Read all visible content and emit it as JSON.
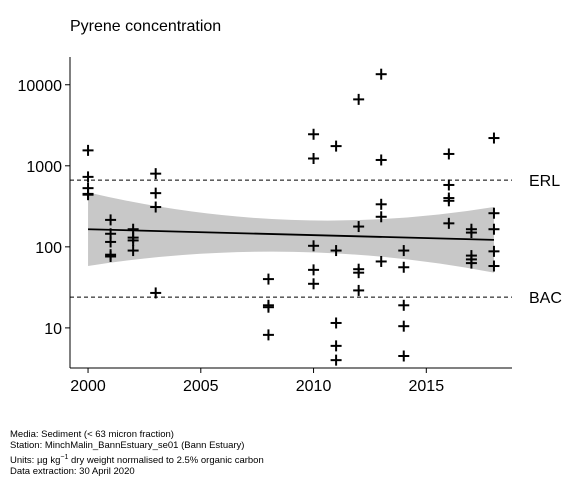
{
  "chart_data": {
    "type": "scatter",
    "title": "Pyrene concentration",
    "xlabel": "",
    "ylabel": "",
    "yscale": "log",
    "xlim": [
      1999.2,
      2018.8
    ],
    "ylim": [
      3.2,
      22000
    ],
    "x_ticks": [
      2000,
      2005,
      2010,
      2015
    ],
    "x_tick_labels": [
      "2000",
      "2005",
      "2010",
      "2015"
    ],
    "y_ticks": [
      10,
      100,
      1000,
      10000
    ],
    "y_tick_labels": [
      "10",
      "100",
      "1000",
      "10000"
    ],
    "grid": false,
    "reference_lines": [
      {
        "label": "ERL",
        "value": 665
      },
      {
        "label": "BAC",
        "value": 24
      }
    ],
    "trend": {
      "x": [
        2000,
        2018
      ],
      "y": [
        165,
        122
      ],
      "band_lower": [
        58,
        48
      ],
      "band_mid": [
        150,
        100
      ],
      "band_upper": [
        470,
        310
      ],
      "band_color": "#c8c8c8"
    },
    "points": [
      {
        "x": 2000,
        "y": 1550
      },
      {
        "x": 2000,
        "y": 730
      },
      {
        "x": 2000,
        "y": 530
      },
      {
        "x": 2000,
        "y": 450
      },
      {
        "x": 2000,
        "y": 440
      },
      {
        "x": 2001,
        "y": 215
      },
      {
        "x": 2001,
        "y": 145
      },
      {
        "x": 2001,
        "y": 115
      },
      {
        "x": 2001,
        "y": 80
      },
      {
        "x": 2001,
        "y": 76
      },
      {
        "x": 2002,
        "y": 165
      },
      {
        "x": 2002,
        "y": 130
      },
      {
        "x": 2002,
        "y": 120
      },
      {
        "x": 2002,
        "y": 90
      },
      {
        "x": 2003,
        "y": 800
      },
      {
        "x": 2003,
        "y": 460
      },
      {
        "x": 2003,
        "y": 310
      },
      {
        "x": 2003,
        "y": 27
      },
      {
        "x": 2008,
        "y": 40
      },
      {
        "x": 2008,
        "y": 19
      },
      {
        "x": 2008,
        "y": 18
      },
      {
        "x": 2008,
        "y": 8.2
      },
      {
        "x": 2010,
        "y": 2450
      },
      {
        "x": 2010,
        "y": 1230
      },
      {
        "x": 2010,
        "y": 103
      },
      {
        "x": 2010,
        "y": 52
      },
      {
        "x": 2010,
        "y": 35
      },
      {
        "x": 2011,
        "y": 1750
      },
      {
        "x": 2011,
        "y": 90
      },
      {
        "x": 2011,
        "y": 11.5
      },
      {
        "x": 2011,
        "y": 6
      },
      {
        "x": 2011,
        "y": 4
      },
      {
        "x": 2012,
        "y": 6600
      },
      {
        "x": 2012,
        "y": 178
      },
      {
        "x": 2012,
        "y": 53
      },
      {
        "x": 2012,
        "y": 48
      },
      {
        "x": 2012,
        "y": 29
      },
      {
        "x": 2013,
        "y": 13500
      },
      {
        "x": 2013,
        "y": 1180
      },
      {
        "x": 2013,
        "y": 335
      },
      {
        "x": 2013,
        "y": 235
      },
      {
        "x": 2013,
        "y": 66
      },
      {
        "x": 2014,
        "y": 90
      },
      {
        "x": 2014,
        "y": 56
      },
      {
        "x": 2014,
        "y": 19
      },
      {
        "x": 2014,
        "y": 10.5
      },
      {
        "x": 2014,
        "y": 4.5
      },
      {
        "x": 2016,
        "y": 1400
      },
      {
        "x": 2016,
        "y": 580
      },
      {
        "x": 2016,
        "y": 400
      },
      {
        "x": 2016,
        "y": 370
      },
      {
        "x": 2016,
        "y": 195
      },
      {
        "x": 2017,
        "y": 165
      },
      {
        "x": 2017,
        "y": 150
      },
      {
        "x": 2017,
        "y": 78
      },
      {
        "x": 2017,
        "y": 70
      },
      {
        "x": 2017,
        "y": 63
      },
      {
        "x": 2018,
        "y": 2200
      },
      {
        "x": 2018,
        "y": 260
      },
      {
        "x": 2018,
        "y": 165
      },
      {
        "x": 2018,
        "y": 88
      },
      {
        "x": 2018,
        "y": 58
      }
    ]
  },
  "footer": {
    "media": "Media: Sediment (< 63 micron fraction)",
    "station": "Station: MinchMalin_BannEstuary_se01 (Bann Estuary)",
    "units_prefix": "Units: ",
    "units_unit": "µg kg",
    "units_exp": "−1",
    "units_suffix": " dry weight normalised to 2.5% organic carbon",
    "extraction": "Data extraction: 30 April 2020"
  }
}
